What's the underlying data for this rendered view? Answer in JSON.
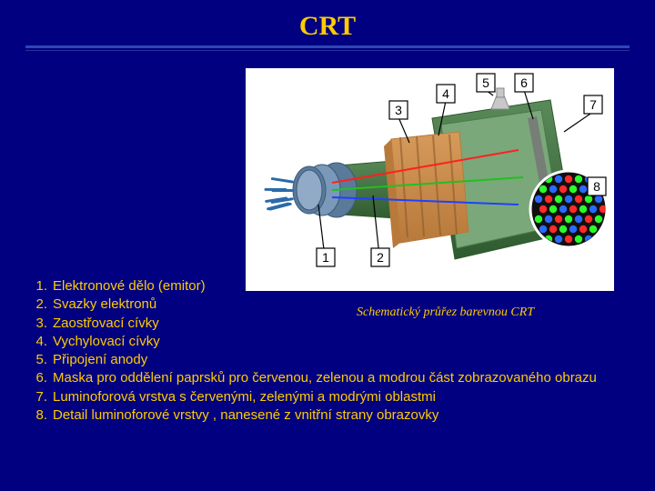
{
  "title": "CRT",
  "caption": "Schematický průřez barevnou CRT",
  "list": [
    {
      "n": "1.",
      "t": "Elektronové dělo (emitor)"
    },
    {
      "n": "2.",
      "t": "Svazky elektronů"
    },
    {
      "n": "3.",
      "t": "Zaostřovací cívky"
    },
    {
      "n": "4.",
      "t": "Vychylovací cívky"
    },
    {
      "n": "5.",
      "t": "Připojení anody"
    },
    {
      "n": "6.",
      "t": "Maska pro oddělení paprsků pro červenou, zelenou a modrou část zobrazovaného obrazu"
    },
    {
      "n": "7.",
      "t": "Luminoforová vrstva s červenými, zelenými a modrými oblastmi"
    },
    {
      "n": "8.",
      "t": "Detail luminoforové vrstvy , nanesené z vnitřní strany obrazovky"
    }
  ],
  "diagram": {
    "bg": "#ffffff",
    "labels": [
      "1",
      "2",
      "3",
      "4",
      "5",
      "6",
      "7",
      "8"
    ],
    "colors": {
      "tube_body": "#5a8a5a",
      "tube_body_dark": "#2f5a2f",
      "coil_outer": "#b87a3a",
      "coil_inner": "#d69a5a",
      "gun_metal": "#5a7a9a",
      "gun_ring": "#3a5a7a",
      "pin": "#2a6aaa",
      "beam_r": "#ff2020",
      "beam_g": "#20c020",
      "beam_b": "#2040ff",
      "mask": "#777777",
      "phos_bg": "#101010",
      "phos_r": "#ff2a2a",
      "phos_g": "#2aff2a",
      "phos_b": "#2a6aff",
      "callout_box": "#ffffff",
      "callout_stroke": "#000000",
      "anode": "#c8c8c8"
    }
  }
}
